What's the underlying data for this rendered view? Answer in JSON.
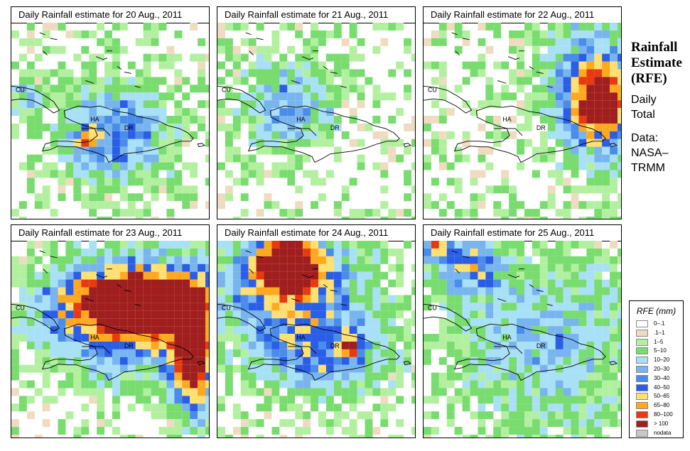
{
  "panels": [
    {
      "title": "Daily Rainfall estimate for  20 Aug., 2011",
      "labels": {
        "cu": "CU",
        "ha": "HA",
        "dr": "DR"
      }
    },
    {
      "title": "Daily Rainfall estimate for  21 Aug., 2011",
      "labels": {
        "cu": "CU",
        "ha": "HA",
        "dr": "DR"
      }
    },
    {
      "title": "Daily Rainfall estimate for  22 Aug., 2011",
      "labels": {
        "cu": "CU",
        "ha": "HA",
        "dr": "DR"
      }
    },
    {
      "title": "Daily Rainfall estimate for  23 Aug., 2011",
      "labels": {
        "cu": "CU",
        "ha": "HA",
        "dr": "DR"
      }
    },
    {
      "title": "Daily Rainfall estimate for  24 Aug., 2011",
      "labels": {
        "cu": "CU",
        "ha": "HA",
        "dr": "DR"
      }
    },
    {
      "title": "Daily Rainfall estimate for  25 Aug., 2011",
      "labels": {
        "cu": "CU",
        "ha": "HA",
        "dr": "DR"
      }
    }
  ],
  "side": {
    "heading_line1": "Rainfall",
    "heading_line2": "Estimate",
    "heading_line3": "(RFE)",
    "daily": "Daily",
    "total": "Total",
    "data_label": "Data:",
    "source1": "NASA–",
    "source2": "TRMM"
  },
  "legend": {
    "title": "RFE (mm)",
    "items": [
      {
        "label": "0–.1",
        "color": "#ffffff"
      },
      {
        "label": ".1–1",
        "color": "#efdcc0"
      },
      {
        "label": "1–5",
        "color": "#b2f0a0"
      },
      {
        "label": "5–10",
        "color": "#78dc6e"
      },
      {
        "label": "10–20",
        "color": "#a8e0f6"
      },
      {
        "label": "20–30",
        "color": "#78b4ee"
      },
      {
        "label": "30–40",
        "color": "#4a8cea"
      },
      {
        "label": "40–50",
        "color": "#2a5ee6"
      },
      {
        "label": "50–65",
        "color": "#ffe070"
      },
      {
        "label": "65–80",
        "color": "#ffa820"
      },
      {
        "label": "80–100",
        "color": "#e83a10"
      },
      {
        "label": "> 100",
        "color": "#a01e1e"
      },
      {
        "label": "nodata",
        "color": "#c8c8c8"
      }
    ]
  }
}
